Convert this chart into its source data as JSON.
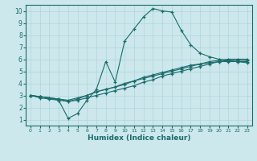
{
  "xlabel": "Humidex (Indice chaleur)",
  "background_color": "#cce8ec",
  "grid_color": "#b0d4d8",
  "line_color": "#1a6b6b",
  "xlim": [
    -0.5,
    23.5
  ],
  "ylim": [
    0.5,
    10.5
  ],
  "xticks": [
    0,
    1,
    2,
    3,
    4,
    5,
    6,
    7,
    8,
    9,
    10,
    11,
    12,
    13,
    14,
    15,
    16,
    17,
    18,
    19,
    20,
    21,
    22,
    23
  ],
  "yticks": [
    1,
    2,
    3,
    4,
    5,
    6,
    7,
    8,
    9,
    10
  ],
  "line1_x": [
    0,
    1,
    2,
    3,
    4,
    5,
    6,
    7,
    8,
    9,
    10,
    11,
    12,
    13,
    14,
    15,
    16,
    17,
    18,
    19,
    20,
    21,
    22,
    23
  ],
  "line1_y": [
    3.0,
    2.8,
    2.7,
    2.6,
    1.1,
    1.5,
    2.6,
    3.5,
    5.8,
    4.1,
    7.5,
    8.5,
    9.5,
    10.2,
    10.0,
    9.9,
    8.4,
    7.2,
    6.5,
    6.2,
    6.0,
    5.9,
    5.8,
    5.7
  ],
  "line2_x": [
    0,
    1,
    2,
    3,
    4,
    5,
    6,
    7,
    8,
    9,
    10,
    11,
    12,
    13,
    14,
    15,
    16,
    17,
    18,
    19,
    20,
    21,
    22,
    23
  ],
  "line2_y": [
    3.0,
    2.9,
    2.8,
    2.6,
    2.5,
    2.7,
    3.0,
    3.3,
    3.5,
    3.7,
    3.9,
    4.2,
    4.4,
    4.6,
    4.8,
    5.0,
    5.2,
    5.4,
    5.6,
    5.8,
    5.9,
    6.0,
    6.0,
    6.0
  ],
  "line3_x": [
    0,
    1,
    2,
    3,
    4,
    5,
    6,
    7,
    8,
    9,
    10,
    11,
    12,
    13,
    14,
    15,
    16,
    17,
    18,
    19,
    20,
    21,
    22,
    23
  ],
  "line3_y": [
    3.0,
    2.9,
    2.8,
    2.7,
    2.5,
    2.6,
    2.8,
    3.0,
    3.2,
    3.4,
    3.6,
    3.8,
    4.1,
    4.3,
    4.6,
    4.8,
    5.0,
    5.2,
    5.4,
    5.6,
    5.8,
    5.9,
    5.9,
    5.9
  ],
  "line4_x": [
    0,
    1,
    2,
    3,
    4,
    5,
    6,
    7,
    8,
    9,
    10,
    11,
    12,
    13,
    14,
    15,
    16,
    17,
    18,
    19,
    20,
    21,
    22,
    23
  ],
  "line4_y": [
    3.0,
    2.9,
    2.8,
    2.7,
    2.6,
    2.8,
    3.0,
    3.3,
    3.5,
    3.7,
    4.0,
    4.2,
    4.5,
    4.7,
    4.9,
    5.1,
    5.3,
    5.5,
    5.6,
    5.7,
    5.8,
    5.8,
    5.8,
    5.8
  ]
}
